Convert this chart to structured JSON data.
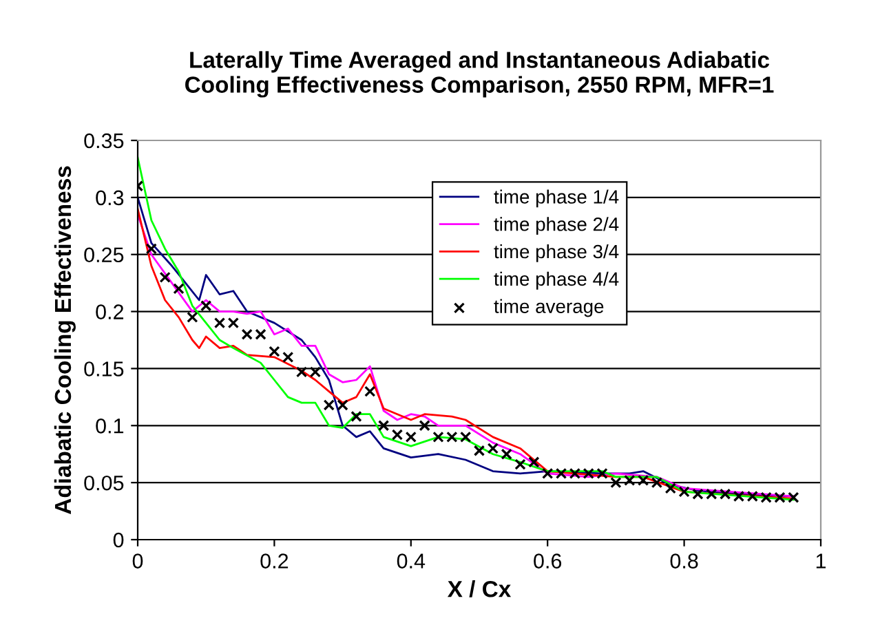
{
  "chart_data": {
    "type": "line",
    "title": "Laterally Time Averaged and Instantaneous Adiabatic\nCooling Effectiveness Comparison, 2550 RPM, MFR=1",
    "xlabel": "X / Cx",
    "ylabel": "Adiabatic Cooling Effectiveness",
    "xlim": [
      0,
      1
    ],
    "ylim": [
      0,
      0.35
    ],
    "xticks": [
      0,
      0.2,
      0.4,
      0.6,
      0.8,
      1
    ],
    "yticks": [
      0,
      0.05,
      0.1,
      0.15,
      0.2,
      0.25,
      0.3,
      0.35
    ],
    "grid": "y",
    "legend": "top right",
    "series": [
      {
        "name": "time phase 1/4",
        "color": "#000080",
        "x": [
          0,
          0.02,
          0.05,
          0.07,
          0.09,
          0.1,
          0.12,
          0.14,
          0.16,
          0.2,
          0.24,
          0.26,
          0.28,
          0.3,
          0.32,
          0.34,
          0.36,
          0.4,
          0.44,
          0.48,
          0.52,
          0.56,
          0.6,
          0.68,
          0.72,
          0.74,
          0.78,
          0.82,
          0.88,
          0.96
        ],
        "values": [
          0.3,
          0.26,
          0.24,
          0.225,
          0.21,
          0.232,
          0.215,
          0.218,
          0.2,
          0.19,
          0.175,
          0.16,
          0.14,
          0.1,
          0.09,
          0.095,
          0.08,
          0.072,
          0.075,
          0.07,
          0.06,
          0.058,
          0.06,
          0.058,
          0.058,
          0.06,
          0.048,
          0.043,
          0.04,
          0.038
        ]
      },
      {
        "name": "time phase 2/4",
        "color": "#ff00ff",
        "x": [
          0,
          0.02,
          0.05,
          0.08,
          0.1,
          0.12,
          0.14,
          0.16,
          0.18,
          0.2,
          0.22,
          0.24,
          0.26,
          0.28,
          0.3,
          0.32,
          0.34,
          0.36,
          0.38,
          0.4,
          0.42,
          0.44,
          0.48,
          0.52,
          0.56,
          0.6,
          0.66,
          0.7,
          0.76,
          0.8,
          0.96
        ],
        "values": [
          0.285,
          0.25,
          0.225,
          0.2,
          0.21,
          0.2,
          0.2,
          0.198,
          0.2,
          0.18,
          0.185,
          0.17,
          0.17,
          0.145,
          0.138,
          0.14,
          0.152,
          0.113,
          0.105,
          0.11,
          0.108,
          0.1,
          0.1,
          0.085,
          0.075,
          0.058,
          0.055,
          0.058,
          0.055,
          0.045,
          0.038
        ]
      },
      {
        "name": "time phase 3/4",
        "color": "#ff0000",
        "x": [
          0,
          0.02,
          0.04,
          0.06,
          0.08,
          0.09,
          0.1,
          0.12,
          0.14,
          0.16,
          0.2,
          0.24,
          0.26,
          0.28,
          0.3,
          0.32,
          0.34,
          0.36,
          0.4,
          0.42,
          0.46,
          0.48,
          0.52,
          0.56,
          0.6,
          0.7,
          0.74,
          0.8,
          0.96
        ],
        "values": [
          0.29,
          0.24,
          0.21,
          0.195,
          0.175,
          0.168,
          0.178,
          0.168,
          0.17,
          0.162,
          0.16,
          0.148,
          0.14,
          0.13,
          0.12,
          0.125,
          0.145,
          0.115,
          0.105,
          0.11,
          0.108,
          0.105,
          0.09,
          0.08,
          0.06,
          0.055,
          0.055,
          0.042,
          0.036
        ]
      },
      {
        "name": "time phase 4/4",
        "color": "#00ff00",
        "x": [
          0,
          0.02,
          0.04,
          0.06,
          0.08,
          0.1,
          0.12,
          0.14,
          0.18,
          0.2,
          0.22,
          0.24,
          0.26,
          0.28,
          0.3,
          0.32,
          0.34,
          0.36,
          0.4,
          0.44,
          0.48,
          0.52,
          0.56,
          0.6,
          0.68,
          0.7,
          0.76,
          0.8,
          0.96
        ],
        "values": [
          0.335,
          0.28,
          0.255,
          0.235,
          0.205,
          0.19,
          0.175,
          0.168,
          0.155,
          0.14,
          0.125,
          0.12,
          0.12,
          0.1,
          0.098,
          0.11,
          0.11,
          0.09,
          0.082,
          0.09,
          0.088,
          0.075,
          0.068,
          0.06,
          0.06,
          0.055,
          0.055,
          0.042,
          0.035
        ]
      },
      {
        "name": "time average",
        "type": "scatter",
        "marker": "cross",
        "color": "#000000",
        "x": [
          0,
          0.02,
          0.04,
          0.06,
          0.08,
          0.1,
          0.12,
          0.14,
          0.16,
          0.18,
          0.2,
          0.22,
          0.24,
          0.26,
          0.28,
          0.3,
          0.32,
          0.34,
          0.36,
          0.38,
          0.4,
          0.42,
          0.44,
          0.46,
          0.48,
          0.5,
          0.52,
          0.54,
          0.56,
          0.58,
          0.6,
          0.62,
          0.64,
          0.66,
          0.68,
          0.7,
          0.72,
          0.74,
          0.76,
          0.78,
          0.8,
          0.82,
          0.84,
          0.86,
          0.88,
          0.9,
          0.92,
          0.94,
          0.96
        ],
        "values": [
          0.31,
          0.255,
          0.23,
          0.22,
          0.195,
          0.205,
          0.19,
          0.19,
          0.18,
          0.18,
          0.165,
          0.16,
          0.147,
          0.147,
          0.118,
          0.118,
          0.108,
          0.13,
          0.1,
          0.092,
          0.09,
          0.1,
          0.09,
          0.09,
          0.09,
          0.078,
          0.08,
          0.075,
          0.066,
          0.068,
          0.058,
          0.058,
          0.058,
          0.058,
          0.058,
          0.05,
          0.052,
          0.052,
          0.05,
          0.045,
          0.042,
          0.04,
          0.04,
          0.04,
          0.038,
          0.038,
          0.037,
          0.037,
          0.037
        ]
      }
    ]
  }
}
